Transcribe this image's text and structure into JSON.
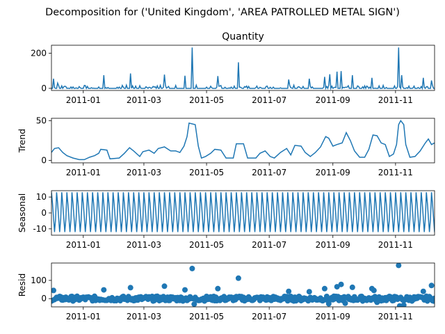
{
  "figure_title": "Decomposition for ('United Kingdom', 'AREA PATROLLED METAL SIGN')",
  "line_color": "#1f77b4",
  "x_tick_labels": [
    "2011-01",
    "2011-03",
    "2011-05",
    "2011-07",
    "2011-09",
    "2011-11"
  ],
  "chart_data": [
    {
      "type": "line",
      "title": "Quantity",
      "ylabel": "",
      "x_range": [
        "2010-12-01",
        "2011-12-09"
      ],
      "ylim": [
        -12,
        245
      ],
      "yticks": [
        0,
        200
      ],
      "spikes": [
        {
          "date": "2010-12-03",
          "value": 55
        },
        {
          "date": "2010-12-07",
          "value": 30
        },
        {
          "date": "2011-01-21",
          "value": 75
        },
        {
          "date": "2011-02-16",
          "value": 85
        },
        {
          "date": "2011-03-21",
          "value": 78
        },
        {
          "date": "2011-04-10",
          "value": 72
        },
        {
          "date": "2011-04-17",
          "value": 232
        },
        {
          "date": "2011-05-12",
          "value": 70
        },
        {
          "date": "2011-06-01",
          "value": 148
        },
        {
          "date": "2011-07-20",
          "value": 50
        },
        {
          "date": "2011-08-09",
          "value": 55
        },
        {
          "date": "2011-08-24",
          "value": 65
        },
        {
          "date": "2011-08-29",
          "value": 80
        },
        {
          "date": "2011-09-05",
          "value": 95
        },
        {
          "date": "2011-09-09",
          "value": 98
        },
        {
          "date": "2011-09-20",
          "value": 75
        },
        {
          "date": "2011-10-09",
          "value": 60
        },
        {
          "date": "2011-11-04",
          "value": 232
        },
        {
          "date": "2011-11-07",
          "value": 75
        },
        {
          "date": "2011-11-28",
          "value": 60
        },
        {
          "date": "2011-12-06",
          "value": 45
        }
      ]
    },
    {
      "type": "line",
      "title": "",
      "ylabel": "Trend",
      "x_range": [
        "2010-12-01",
        "2011-12-09"
      ],
      "ylim": [
        -3,
        53
      ],
      "yticks": [
        0,
        50
      ],
      "points": [
        [
          "2010-12-01",
          10
        ],
        [
          "2010-12-04",
          15
        ],
        [
          "2010-12-08",
          16
        ],
        [
          "2010-12-12",
          10
        ],
        [
          "2010-12-16",
          6
        ],
        [
          "2010-12-22",
          3
        ],
        [
          "2010-12-28",
          1
        ],
        [
          "2011-01-02",
          1
        ],
        [
          "2011-01-07",
          4
        ],
        [
          "2011-01-12",
          6
        ],
        [
          "2011-01-16",
          9
        ],
        [
          "2011-01-18",
          14
        ],
        [
          "2011-01-24",
          13
        ],
        [
          "2011-01-27",
          2
        ],
        [
          "2011-02-05",
          3
        ],
        [
          "2011-02-10",
          9
        ],
        [
          "2011-02-15",
          16
        ],
        [
          "2011-02-19",
          12
        ],
        [
          "2011-02-25",
          5
        ],
        [
          "2011-02-28",
          11
        ],
        [
          "2011-03-06",
          13
        ],
        [
          "2011-03-11",
          9
        ],
        [
          "2011-03-15",
          15
        ],
        [
          "2011-03-21",
          17
        ],
        [
          "2011-03-27",
          12
        ],
        [
          "2011-04-01",
          12
        ],
        [
          "2011-04-05",
          10
        ],
        [
          "2011-04-09",
          18
        ],
        [
          "2011-04-12",
          30
        ],
        [
          "2011-04-14",
          47
        ],
        [
          "2011-04-20",
          45
        ],
        [
          "2011-04-23",
          18
        ],
        [
          "2011-04-26",
          3
        ],
        [
          "2011-04-30",
          5
        ],
        [
          "2011-05-05",
          9
        ],
        [
          "2011-05-09",
          14
        ],
        [
          "2011-05-15",
          13
        ],
        [
          "2011-05-20",
          3
        ],
        [
          "2011-05-27",
          3
        ],
        [
          "2011-05-30",
          21
        ],
        [
          "2011-06-06",
          21
        ],
        [
          "2011-06-10",
          3
        ],
        [
          "2011-06-18",
          3
        ],
        [
          "2011-06-22",
          9
        ],
        [
          "2011-06-27",
          12
        ],
        [
          "2011-07-02",
          5
        ],
        [
          "2011-07-06",
          3
        ],
        [
          "2011-07-12",
          10
        ],
        [
          "2011-07-18",
          15
        ],
        [
          "2011-07-22",
          7
        ],
        [
          "2011-07-26",
          19
        ],
        [
          "2011-08-01",
          18
        ],
        [
          "2011-08-05",
          10
        ],
        [
          "2011-08-10",
          5
        ],
        [
          "2011-08-15",
          10
        ],
        [
          "2011-08-20",
          17
        ],
        [
          "2011-08-25",
          30
        ],
        [
          "2011-08-28",
          28
        ],
        [
          "2011-09-01",
          18
        ],
        [
          "2011-09-05",
          20
        ],
        [
          "2011-09-10",
          22
        ],
        [
          "2011-09-14",
          35
        ],
        [
          "2011-09-18",
          25
        ],
        [
          "2011-09-22",
          12
        ],
        [
          "2011-09-27",
          4
        ],
        [
          "2011-10-02",
          4
        ],
        [
          "2011-10-06",
          14
        ],
        [
          "2011-10-10",
          32
        ],
        [
          "2011-10-14",
          31
        ],
        [
          "2011-10-18",
          22
        ],
        [
          "2011-10-22",
          20
        ],
        [
          "2011-10-26",
          5
        ],
        [
          "2011-10-30",
          8
        ],
        [
          "2011-11-02",
          20
        ],
        [
          "2011-11-04",
          45
        ],
        [
          "2011-11-06",
          50
        ],
        [
          "2011-11-09",
          45
        ],
        [
          "2011-11-11",
          20
        ],
        [
          "2011-11-15",
          4
        ],
        [
          "2011-11-20",
          5
        ],
        [
          "2011-11-25",
          12
        ],
        [
          "2011-11-30",
          22
        ],
        [
          "2011-12-03",
          27
        ],
        [
          "2011-12-06",
          20
        ],
        [
          "2011-12-09",
          22
        ]
      ]
    },
    {
      "type": "line",
      "title": "",
      "ylabel": "Seasonal",
      "x_range": [
        "2010-12-01",
        "2011-12-09"
      ],
      "ylim": [
        -14,
        14
      ],
      "yticks": [
        -10,
        0,
        10
      ],
      "period_days": 5,
      "pattern": [
        13,
        6,
        -3,
        -12,
        -4
      ]
    },
    {
      "type": "scatter",
      "title": "",
      "ylabel": "Resid",
      "x_range": [
        "2010-12-01",
        "2011-12-09"
      ],
      "ylim": [
        -45,
        195
      ],
      "yticks": [
        0,
        100
      ],
      "baseline": 0,
      "outliers": [
        {
          "date": "2010-12-03",
          "value": 45
        },
        {
          "date": "2011-01-21",
          "value": 48
        },
        {
          "date": "2011-02-16",
          "value": 60
        },
        {
          "date": "2011-03-21",
          "value": 68
        },
        {
          "date": "2011-04-10",
          "value": 48
        },
        {
          "date": "2011-04-17",
          "value": 165
        },
        {
          "date": "2011-05-12",
          "value": 55
        },
        {
          "date": "2011-06-01",
          "value": 112
        },
        {
          "date": "2011-07-20",
          "value": 40
        },
        {
          "date": "2011-08-09",
          "value": 38
        },
        {
          "date": "2011-08-24",
          "value": 55
        },
        {
          "date": "2011-09-05",
          "value": 65
        },
        {
          "date": "2011-09-09",
          "value": 78
        },
        {
          "date": "2011-09-20",
          "value": 62
        },
        {
          "date": "2011-10-09",
          "value": 55
        },
        {
          "date": "2011-10-11",
          "value": 45
        },
        {
          "date": "2011-11-04",
          "value": 182
        },
        {
          "date": "2011-11-28",
          "value": 40
        },
        {
          "date": "2011-12-06",
          "value": 72
        },
        {
          "date": "2011-04-19",
          "value": -30
        },
        {
          "date": "2011-11-05",
          "value": -40
        },
        {
          "date": "2011-11-09",
          "value": -35
        },
        {
          "date": "2011-09-13",
          "value": -25
        },
        {
          "date": "2011-08-28",
          "value": -28
        },
        {
          "date": "2011-10-14",
          "value": -20
        }
      ]
    }
  ]
}
